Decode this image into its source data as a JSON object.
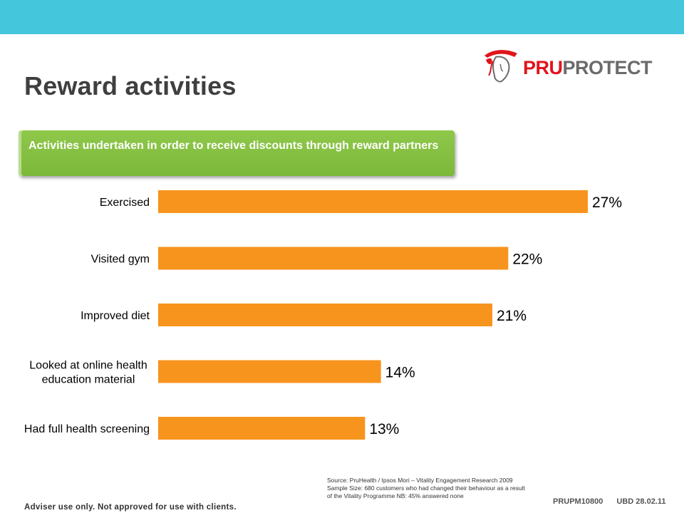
{
  "header": {
    "title": "Reward activities",
    "logo": {
      "pru": "PRU",
      "protect": "PROTECT"
    }
  },
  "banner": {
    "text": "Activities undertaken in order to receive discounts through reward partners"
  },
  "chart_data": {
    "type": "bar",
    "orientation": "horizontal",
    "categories": [
      [
        "Exercised"
      ],
      [
        "Visited gym"
      ],
      [
        "Improved diet"
      ],
      [
        "Looked at online health",
        "education material"
      ],
      [
        "Had full health screening"
      ]
    ],
    "values": [
      27,
      22,
      21,
      14,
      13
    ],
    "value_labels": [
      "27%",
      "22%",
      "21%",
      "14%",
      "13%"
    ],
    "unit": "%",
    "bar_color": "#f7941d",
    "grid": false,
    "legend": "none"
  },
  "source": {
    "lines": [
      "Source: PruHealth / Ipsos Mori – Vitality Engagement Research 2009",
      "Sample Size: 680 customers who had changed their behaviour as a result",
      "of the Vitality Programme NB: 45% answered none"
    ]
  },
  "footer": {
    "disclaimer": "Adviser use only. Not approved for use with clients.",
    "code": "PRUPM10800",
    "date": "UBD 28.02.11"
  },
  "colors": {
    "top_band": "#44c6dc",
    "banner": "#86c03f",
    "bars": "#f7941d",
    "title": "#3f3f3f",
    "brand_red": "#e0151b"
  }
}
